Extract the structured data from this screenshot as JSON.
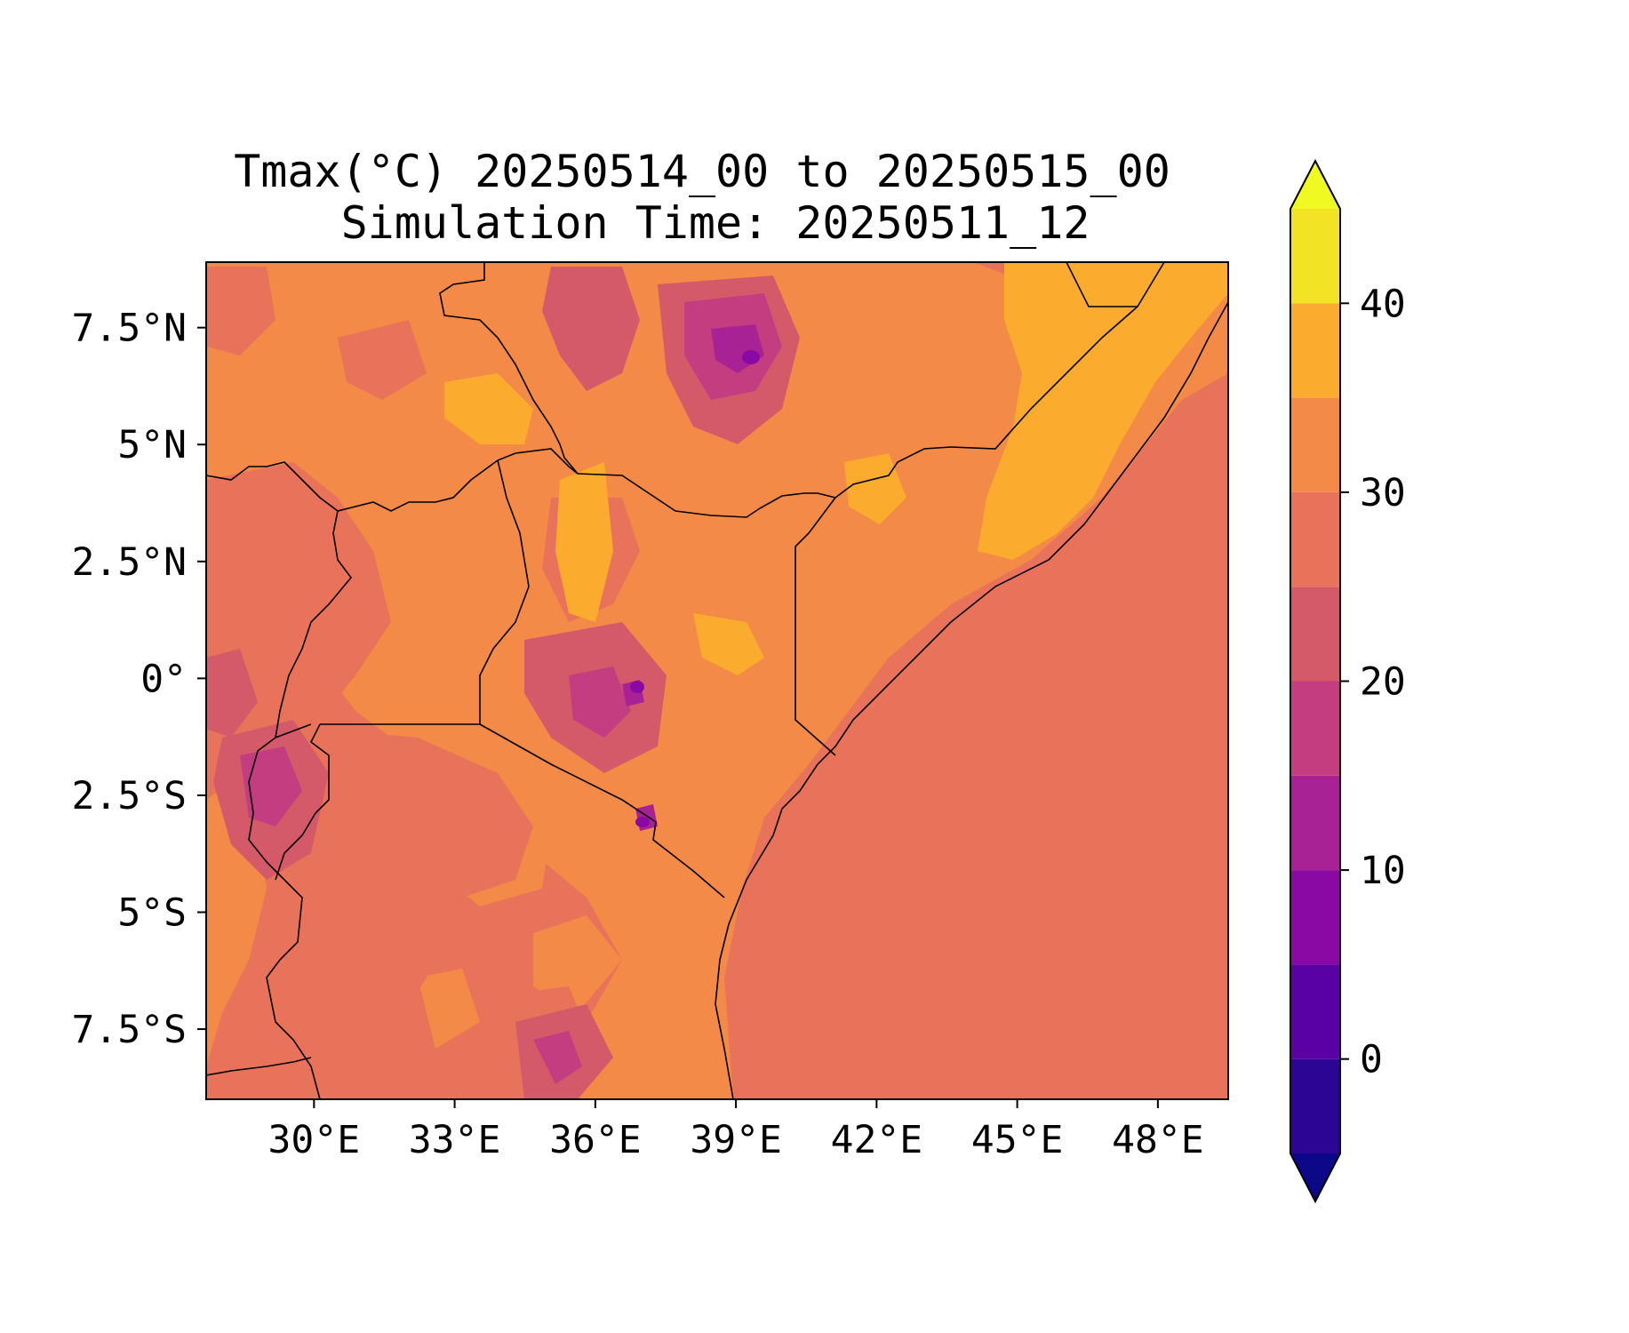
{
  "figure": {
    "title_line1": "Tmax(°C) 20250514_00 to 20250515_00",
    "title_line2": "Simulation Time: 20250511_12"
  },
  "map": {
    "lon_range": [
      27.7,
      49.5
    ],
    "lat_range": [
      -9.0,
      8.9
    ],
    "x_ticks": [
      {
        "value": 30,
        "label": "30°E"
      },
      {
        "value": 33,
        "label": "33°E"
      },
      {
        "value": 36,
        "label": "36°E"
      },
      {
        "value": 39,
        "label": "39°E"
      },
      {
        "value": 42,
        "label": "42°E"
      },
      {
        "value": 45,
        "label": "45°E"
      },
      {
        "value": 48,
        "label": "48°E"
      }
    ],
    "y_ticks": [
      {
        "value": 7.5,
        "label": "7.5°N"
      },
      {
        "value": 5,
        "label": "5°N"
      },
      {
        "value": 2.5,
        "label": "2.5°N"
      },
      {
        "value": 0,
        "label": "0°"
      },
      {
        "value": -2.5,
        "label": "2.5°S"
      },
      {
        "value": -5,
        "label": "5°S"
      },
      {
        "value": -7.5,
        "label": "7.5°S"
      }
    ],
    "ocean_color": "#e8735a"
  },
  "colorbar": {
    "levels": [
      -5,
      0,
      5,
      10,
      15,
      20,
      25,
      30,
      35,
      40,
      45
    ],
    "colors": [
      "#2c0594",
      "#5a01a5",
      "#8a09a5",
      "#a82296",
      "#c33d80",
      "#d45a6a",
      "#e8735a",
      "#f38a47",
      "#fbac2f",
      "#f2e425"
    ],
    "under_color": "#0d0887",
    "over_color": "#f0f921",
    "ticks": [
      {
        "value": 0,
        "label": "0"
      },
      {
        "value": 10,
        "label": "10"
      },
      {
        "value": 20,
        "label": "20"
      },
      {
        "value": 30,
        "label": "30"
      },
      {
        "value": 40,
        "label": "40"
      }
    ]
  }
}
